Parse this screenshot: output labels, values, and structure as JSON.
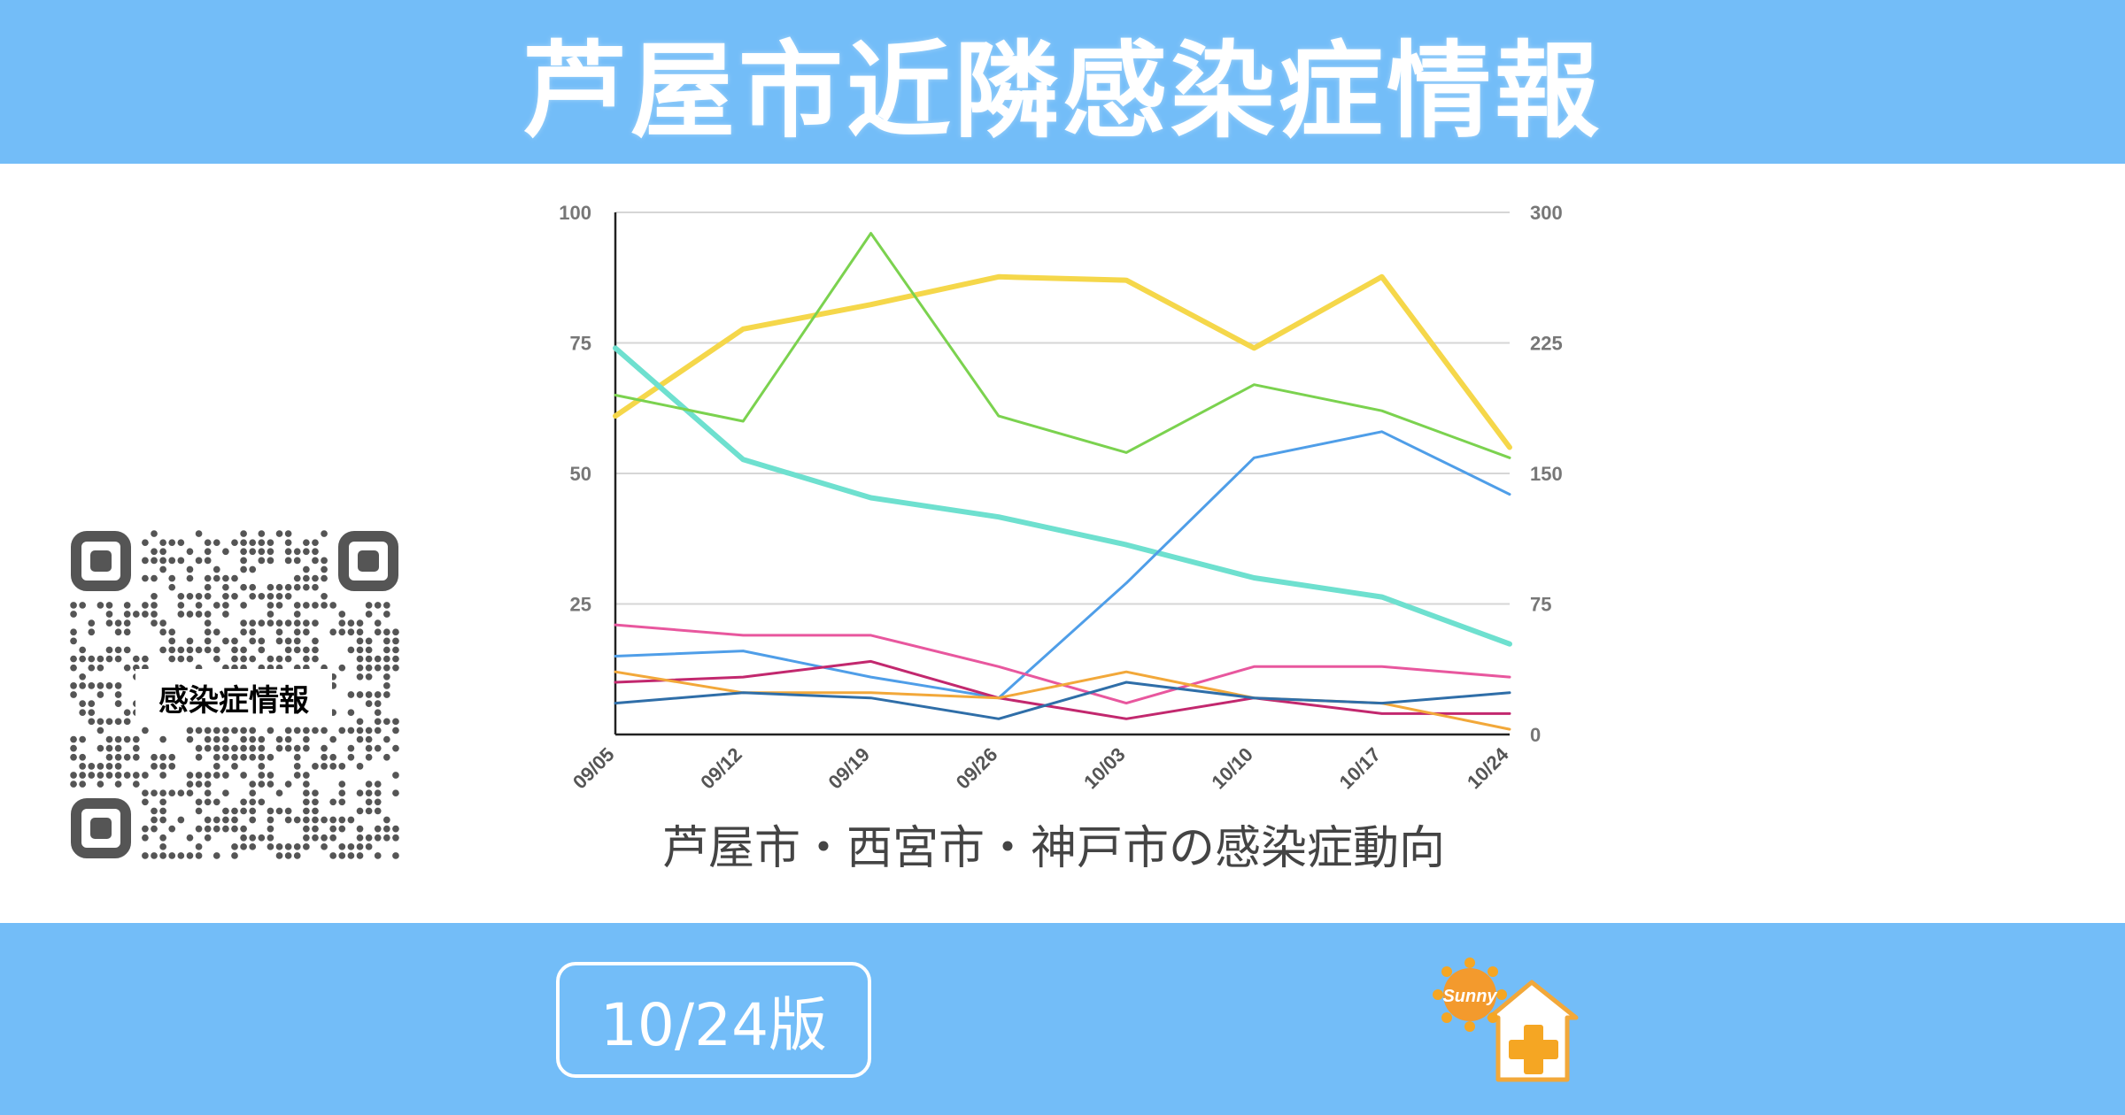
{
  "header": {
    "title": "芦屋市近隣感染症情報",
    "color": "#73bdf8"
  },
  "qr_code": {
    "label": "感染症情報"
  },
  "footer": {
    "version_label": "10/24版",
    "logo_text": "Sunny"
  },
  "chart_data": {
    "type": "line",
    "title": "芦屋市・西宮市・神戸市の感染症動向",
    "categories": [
      "09/05",
      "09/12",
      "09/19",
      "09/26",
      "10/03",
      "10/10",
      "10/17",
      "10/24"
    ],
    "left_axis": {
      "ylim": [
        0,
        100
      ],
      "ticks": [
        "100",
        "75",
        "50",
        "25"
      ]
    },
    "right_axis": {
      "ylim": [
        0,
        300
      ],
      "ticks": [
        "300",
        "225",
        "150",
        "75",
        "0"
      ]
    },
    "grid": true,
    "legend": "none",
    "series": [
      {
        "axis": "right",
        "color": "#f5d74a",
        "width": 6,
        "values": [
          183,
          233,
          247,
          263,
          261,
          222,
          263,
          165
        ]
      },
      {
        "axis": "right",
        "color": "#6ee0cf",
        "width": 6,
        "values": [
          222,
          158,
          136,
          125,
          109,
          90,
          79,
          52
        ]
      },
      {
        "axis": "left",
        "color": "#7bd24f",
        "width": 3,
        "values": [
          65,
          60,
          96,
          61,
          54,
          67,
          62,
          53
        ]
      },
      {
        "axis": "left",
        "color": "#4f9ee8",
        "width": 3,
        "values": [
          15,
          16,
          11,
          7,
          29,
          53,
          58,
          46
        ]
      },
      {
        "axis": "left",
        "color": "#e8579e",
        "width": 3,
        "values": [
          21,
          19,
          19,
          13,
          6,
          13,
          13,
          11
        ]
      },
      {
        "axis": "left",
        "color": "#c2286e",
        "width": 3,
        "values": [
          10,
          11,
          14,
          7,
          3,
          7,
          4,
          4
        ]
      },
      {
        "axis": "left",
        "color": "#f2a83a",
        "width": 3,
        "values": [
          12,
          8,
          8,
          7,
          12,
          7,
          6,
          1
        ]
      },
      {
        "axis": "left",
        "color": "#2f6ea8",
        "width": 3,
        "values": [
          6,
          8,
          7,
          3,
          10,
          7,
          6,
          8
        ]
      }
    ]
  }
}
